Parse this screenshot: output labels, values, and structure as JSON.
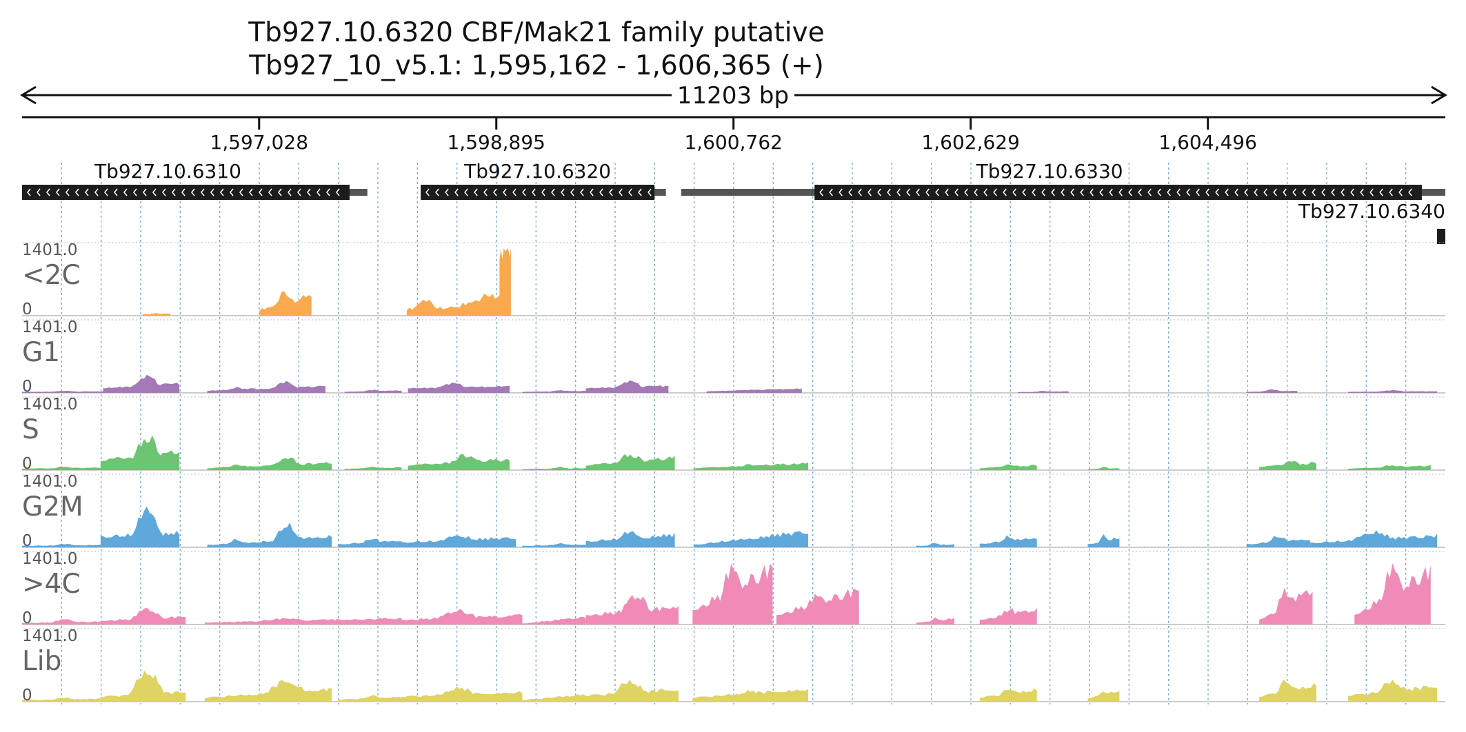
{
  "title_line1": "Tb927.10.6320  CBF/Mak21 family  putative",
  "title_line2": "Tb927_10_v5.1: 1,595,162 - 1,606,365 (+)",
  "span_label": "11203 bp",
  "colors": {
    "text": "#111111",
    "gene_fill": "#1c1c1c",
    "gene_utr": "#555555",
    "grid": "#7aaad8",
    "track_label": "#666666"
  },
  "chart_data": {
    "type": "area",
    "region": {
      "chromosome": "Tb927_10_v5.1",
      "start": 1595162,
      "end": 1606365,
      "strand": "+"
    },
    "x_ticks": [
      {
        "pos": 1597028,
        "label": "1,597,028"
      },
      {
        "pos": 1598895,
        "label": "1,598,895"
      },
      {
        "pos": 1600762,
        "label": "1,600,762"
      },
      {
        "pos": 1602629,
        "label": "1,602,629"
      },
      {
        "pos": 1604496,
        "label": "1,604,496"
      }
    ],
    "genes": [
      {
        "name": "Tb927.10.6310",
        "start": 1595162,
        "end": 1597740,
        "utr_end": 1597880,
        "strand": "-",
        "row": 0
      },
      {
        "name": "Tb927.10.6320",
        "start": 1598300,
        "end": 1600140,
        "utr_end": 1600230,
        "strand": "-",
        "row": 0
      },
      {
        "name": "Tb927.10.6330",
        "start": 1601400,
        "end": 1606180,
        "utr_start": 1600350,
        "utr_end": 1606365,
        "strand": "-",
        "row": 0
      },
      {
        "name": "Tb927.10.6340",
        "start": 1606300,
        "end": 1606365,
        "strand": "-",
        "row": 1
      }
    ],
    "y_max_label": "1401.0",
    "y_min_label": "0",
    "ylim": [
      0,
      1401
    ],
    "tracks": [
      {
        "name": "<2C",
        "color": "#f9a94e",
        "segments": [
          {
            "start": 1596110,
            "end": 1596330,
            "peaks": [
              {
                "x": 1596210,
                "h": 55
              }
            ],
            "base": 30,
            "tail": 45
          },
          {
            "start": 1597030,
            "end": 1597440,
            "peaks": [
              {
                "x": 1597230,
                "h": 520
              }
            ],
            "base": 120,
            "tail": 420
          },
          {
            "start": 1598190,
            "end": 1598760,
            "peaks": [
              {
                "x": 1598340,
                "h": 330
              }
            ],
            "base": 140,
            "tail": 190
          },
          {
            "start": 1598610,
            "end": 1598950,
            "peaks": [
              {
                "x": 1598820,
                "h": 500
              }
            ],
            "base": 220,
            "tail": 470
          },
          {
            "start": 1598920,
            "end": 1599010,
            "peaks": [
              {
                "x": 1598960,
                "h": 1401
              }
            ],
            "base": 1390,
            "tail": 1390
          }
        ]
      },
      {
        "name": "G1",
        "color": "#a37ab5",
        "segments": [
          {
            "start": 1595162,
            "end": 1595800,
            "peaks": [
              {
                "x": 1595500,
                "h": 40
              }
            ],
            "base": 20,
            "tail": 30
          },
          {
            "start": 1595800,
            "end": 1596400,
            "peaks": [
              {
                "x": 1596150,
                "h": 330
              }
            ],
            "base": 90,
            "tail": 200
          },
          {
            "start": 1596620,
            "end": 1597000,
            "peaks": [
              {
                "x": 1596850,
                "h": 110
              }
            ],
            "base": 40,
            "tail": 90
          },
          {
            "start": 1597000,
            "end": 1597550,
            "peaks": [
              {
                "x": 1597230,
                "h": 220
              }
            ],
            "base": 70,
            "tail": 140
          },
          {
            "start": 1597700,
            "end": 1598150,
            "peaks": [
              {
                "x": 1597920,
                "h": 60
              }
            ],
            "base": 20,
            "tail": 50
          },
          {
            "start": 1598200,
            "end": 1599000,
            "peaks": [
              {
                "x": 1598560,
                "h": 190
              }
            ],
            "base": 90,
            "tail": 140
          },
          {
            "start": 1599100,
            "end": 1599600,
            "peaks": [
              {
                "x": 1599400,
                "h": 50
              }
            ],
            "base": 20,
            "tail": 40
          },
          {
            "start": 1599600,
            "end": 1600250,
            "peaks": [
              {
                "x": 1599950,
                "h": 230
              }
            ],
            "base": 90,
            "tail": 150
          },
          {
            "start": 1600550,
            "end": 1601300,
            "peaks": [
              {
                "x": 1600900,
                "h": 60
              }
            ],
            "base": 30,
            "tail": 90
          },
          {
            "start": 1603000,
            "end": 1603400,
            "peaks": [
              {
                "x": 1603200,
                "h": 40
              }
            ],
            "base": 15,
            "tail": 30
          },
          {
            "start": 1604800,
            "end": 1605200,
            "peaks": [
              {
                "x": 1605000,
                "h": 70
              }
            ],
            "base": 20,
            "tail": 40
          },
          {
            "start": 1605600,
            "end": 1606300,
            "peaks": [
              {
                "x": 1605950,
                "h": 50
              }
            ],
            "base": 20,
            "tail": 35
          }
        ]
      },
      {
        "name": "S",
        "color": "#6dc473",
        "segments": [
          {
            "start": 1595162,
            "end": 1595780,
            "peaks": [
              {
                "x": 1595500,
                "h": 70
              }
            ],
            "base": 30,
            "tail": 50
          },
          {
            "start": 1595780,
            "end": 1596400,
            "peaks": [
              {
                "x": 1596150,
                "h": 680
              }
            ],
            "base": 200,
            "tail": 380
          },
          {
            "start": 1596620,
            "end": 1597000,
            "peaks": [
              {
                "x": 1596850,
                "h": 120
              }
            ],
            "base": 40,
            "tail": 90
          },
          {
            "start": 1597000,
            "end": 1597600,
            "peaks": [
              {
                "x": 1597250,
                "h": 260
              }
            ],
            "base": 80,
            "tail": 150
          },
          {
            "start": 1597700,
            "end": 1598150,
            "peaks": [
              {
                "x": 1597920,
                "h": 70
              }
            ],
            "base": 25,
            "tail": 55
          },
          {
            "start": 1598200,
            "end": 1599000,
            "peaks": [
              {
                "x": 1598650,
                "h": 300
              }
            ],
            "base": 100,
            "tail": 220
          },
          {
            "start": 1599100,
            "end": 1599600,
            "peaks": [
              {
                "x": 1599400,
                "h": 60
              }
            ],
            "base": 20,
            "tail": 40
          },
          {
            "start": 1599600,
            "end": 1600300,
            "peaks": [
              {
                "x": 1599950,
                "h": 320
              }
            ],
            "base": 100,
            "tail": 250
          },
          {
            "start": 1600450,
            "end": 1601350,
            "peaks": [
              {
                "x": 1600900,
                "h": 110
              }
            ],
            "base": 40,
            "tail": 140
          },
          {
            "start": 1602700,
            "end": 1603150,
            "peaks": [
              {
                "x": 1602930,
                "h": 120
              }
            ],
            "base": 40,
            "tail": 100
          },
          {
            "start": 1603550,
            "end": 1603800,
            "peaks": [
              {
                "x": 1603680,
                "h": 60
              }
            ],
            "base": 20,
            "tail": 40
          },
          {
            "start": 1604900,
            "end": 1605350,
            "peaks": [
              {
                "x": 1605150,
                "h": 200
              }
            ],
            "base": 70,
            "tail": 150
          },
          {
            "start": 1605600,
            "end": 1606250,
            "peaks": [
              {
                "x": 1605950,
                "h": 100
              }
            ],
            "base": 30,
            "tail": 90
          }
        ]
      },
      {
        "name": "G2M",
        "color": "#5ea8db",
        "segments": [
          {
            "start": 1595162,
            "end": 1595780,
            "peaks": [
              {
                "x": 1595500,
                "h": 70
              }
            ],
            "base": 30,
            "tail": 50
          },
          {
            "start": 1595780,
            "end": 1596400,
            "peaks": [
              {
                "x": 1596150,
                "h": 800
              }
            ],
            "base": 220,
            "tail": 300
          },
          {
            "start": 1596620,
            "end": 1597050,
            "peaks": [
              {
                "x": 1596850,
                "h": 160
              }
            ],
            "base": 50,
            "tail": 110
          },
          {
            "start": 1597050,
            "end": 1597600,
            "peaks": [
              {
                "x": 1597250,
                "h": 460
              }
            ],
            "base": 120,
            "tail": 240
          },
          {
            "start": 1597650,
            "end": 1598150,
            "peaks": [
              {
                "x": 1597920,
                "h": 180
              }
            ],
            "base": 60,
            "tail": 150
          },
          {
            "start": 1598150,
            "end": 1599050,
            "peaks": [
              {
                "x": 1598600,
                "h": 260
              }
            ],
            "base": 100,
            "tail": 200
          },
          {
            "start": 1599100,
            "end": 1599600,
            "peaks": [
              {
                "x": 1599400,
                "h": 80
              }
            ],
            "base": 30,
            "tail": 60
          },
          {
            "start": 1599600,
            "end": 1600300,
            "peaks": [
              {
                "x": 1599950,
                "h": 320
              }
            ],
            "base": 120,
            "tail": 260
          },
          {
            "start": 1600450,
            "end": 1601350,
            "peaks": [
              {
                "x": 1600900,
                "h": 150
              }
            ],
            "base": 50,
            "tail": 330
          },
          {
            "start": 1602200,
            "end": 1602500,
            "peaks": [
              {
                "x": 1602350,
                "h": 90
              }
            ],
            "base": 30,
            "tail": 60
          },
          {
            "start": 1602700,
            "end": 1603150,
            "peaks": [
              {
                "x": 1602930,
                "h": 220
              }
            ],
            "base": 70,
            "tail": 200
          },
          {
            "start": 1603550,
            "end": 1603800,
            "peaks": [
              {
                "x": 1603680,
                "h": 240
              }
            ],
            "base": 60,
            "tail": 200
          },
          {
            "start": 1604800,
            "end": 1605300,
            "peaks": [
              {
                "x": 1605050,
                "h": 230
              }
            ],
            "base": 60,
            "tail": 180
          },
          {
            "start": 1605300,
            "end": 1606300,
            "peaks": [
              {
                "x": 1605800,
                "h": 330
              }
            ],
            "base": 90,
            "tail": 240
          }
        ]
      },
      {
        "name": ">4C",
        "color": "#f08bb8",
        "segments": [
          {
            "start": 1595162,
            "end": 1595780,
            "peaks": [
              {
                "x": 1595500,
                "h": 100
              }
            ],
            "base": 30,
            "tail": 60
          },
          {
            "start": 1595780,
            "end": 1596450,
            "peaks": [
              {
                "x": 1596150,
                "h": 310
              }
            ],
            "base": 80,
            "tail": 160
          },
          {
            "start": 1596600,
            "end": 1598150,
            "peaks": [
              {
                "x": 1597250,
                "h": 120
              }
            ],
            "base": 40,
            "tail": 130
          },
          {
            "start": 1598150,
            "end": 1599100,
            "peaks": [
              {
                "x": 1598600,
                "h": 280
              }
            ],
            "base": 100,
            "tail": 190
          },
          {
            "start": 1599100,
            "end": 1599600,
            "peaks": [
              {
                "x": 1599400,
                "h": 70
              }
            ],
            "base": 20,
            "tail": 150
          },
          {
            "start": 1599600,
            "end": 1600330,
            "peaks": [
              {
                "x": 1600000,
                "h": 580
              }
            ],
            "base": 200,
            "tail": 350
          },
          {
            "start": 1600440,
            "end": 1601070,
            "peaks": [
              {
                "x": 1600750,
                "h": 1080
              }
            ],
            "base": 300,
            "tail": 1150
          },
          {
            "start": 1601100,
            "end": 1601750,
            "peaks": [
              {
                "x": 1601420,
                "h": 550
              }
            ],
            "base": 200,
            "tail": 700
          },
          {
            "start": 1602200,
            "end": 1602500,
            "peaks": [
              {
                "x": 1602350,
                "h": 130
              }
            ],
            "base": 40,
            "tail": 120
          },
          {
            "start": 1602700,
            "end": 1603150,
            "peaks": [
              {
                "x": 1602930,
                "h": 320
              }
            ],
            "base": 100,
            "tail": 300
          },
          {
            "start": 1604900,
            "end": 1605320,
            "peaks": [
              {
                "x": 1605110,
                "h": 720
              }
            ],
            "base": 100,
            "tail": 700
          },
          {
            "start": 1605650,
            "end": 1606250,
            "peaks": [
              {
                "x": 1605950,
                "h": 1080
              }
            ],
            "base": 200,
            "tail": 1100
          }
        ]
      },
      {
        "name": "Lib",
        "color": "#dfd362",
        "segments": [
          {
            "start": 1595162,
            "end": 1595780,
            "peaks": [
              {
                "x": 1595500,
                "h": 80
              }
            ],
            "base": 30,
            "tail": 60
          },
          {
            "start": 1595780,
            "end": 1596450,
            "peaks": [
              {
                "x": 1596150,
                "h": 620
              }
            ],
            "base": 100,
            "tail": 200
          },
          {
            "start": 1596600,
            "end": 1597600,
            "peaks": [
              {
                "x": 1597250,
                "h": 420
              }
            ],
            "base": 80,
            "tail": 260
          },
          {
            "start": 1597650,
            "end": 1598150,
            "peaks": [
              {
                "x": 1597920,
                "h": 120
              }
            ],
            "base": 40,
            "tail": 100
          },
          {
            "start": 1598150,
            "end": 1599100,
            "peaks": [
              {
                "x": 1598600,
                "h": 280
              }
            ],
            "base": 100,
            "tail": 200
          },
          {
            "start": 1599100,
            "end": 1599600,
            "peaks": [
              {
                "x": 1599400,
                "h": 80
              }
            ],
            "base": 30,
            "tail": 150
          },
          {
            "start": 1599600,
            "end": 1600330,
            "peaks": [
              {
                "x": 1599950,
                "h": 420
              }
            ],
            "base": 120,
            "tail": 260
          },
          {
            "start": 1600440,
            "end": 1601350,
            "peaks": [
              {
                "x": 1600900,
                "h": 220
              }
            ],
            "base": 80,
            "tail": 260
          },
          {
            "start": 1602700,
            "end": 1603150,
            "peaks": [
              {
                "x": 1602930,
                "h": 260
              }
            ],
            "base": 80,
            "tail": 250
          },
          {
            "start": 1603550,
            "end": 1603800,
            "peaks": [
              {
                "x": 1603680,
                "h": 230
              }
            ],
            "base": 60,
            "tail": 220
          },
          {
            "start": 1604900,
            "end": 1605350,
            "peaks": [
              {
                "x": 1605110,
                "h": 420
              }
            ],
            "base": 100,
            "tail": 350
          },
          {
            "start": 1605600,
            "end": 1606300,
            "peaks": [
              {
                "x": 1605950,
                "h": 420
              }
            ],
            "base": 120,
            "tail": 320
          }
        ]
      }
    ]
  }
}
